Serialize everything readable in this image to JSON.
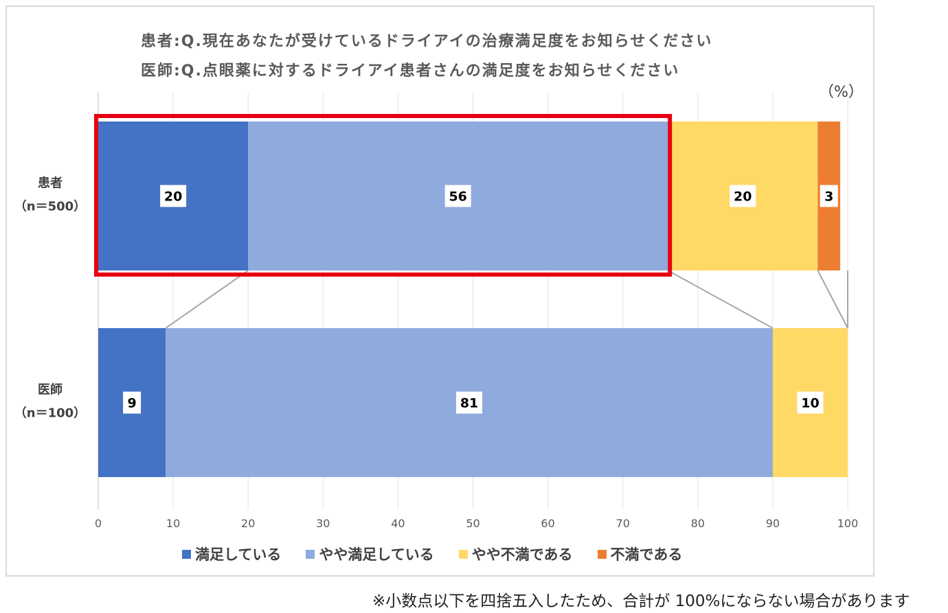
{
  "unit_label": "（%）",
  "footnote": "※小数点以下を四捨五入したため、合計が 100%にならない場合があります",
  "chart_data": {
    "type": "bar",
    "orientation": "horizontal-stacked",
    "title": [
      "患者:Q.現在あなたが受けているドライアイの治療満足度をお知らせください",
      "医師:Q.点眼薬に対するドライアイ患者さんの満足度をお知らせください"
    ],
    "categories": [
      {
        "name": "患者",
        "n": "（n＝500）"
      },
      {
        "name": "医師",
        "n": "（n＝100）"
      }
    ],
    "xlim": [
      0,
      100
    ],
    "xticks": [
      "0",
      "10",
      "20",
      "30",
      "40",
      "50",
      "60",
      "70",
      "80",
      "90",
      "100"
    ],
    "grid": true,
    "legend_position": "bottom",
    "series": [
      {
        "name": "満足している",
        "color": "#4472c4",
        "values": [
          20,
          9
        ],
        "labels": [
          "20",
          "9"
        ]
      },
      {
        "name": "やや満足している",
        "color": "#8faadc",
        "values": [
          56,
          81
        ],
        "labels": [
          "56",
          "81"
        ]
      },
      {
        "name": "やや不満である",
        "color": "#ffd966",
        "values": [
          20,
          10
        ],
        "labels": [
          "20",
          "10"
        ]
      },
      {
        "name": "不満である",
        "color": "#ed7d31",
        "values": [
          3,
          0
        ],
        "labels": [
          "3",
          ""
        ]
      }
    ],
    "highlight": {
      "category": 0,
      "from": 0,
      "to": 76,
      "color": "#e60012"
    }
  }
}
